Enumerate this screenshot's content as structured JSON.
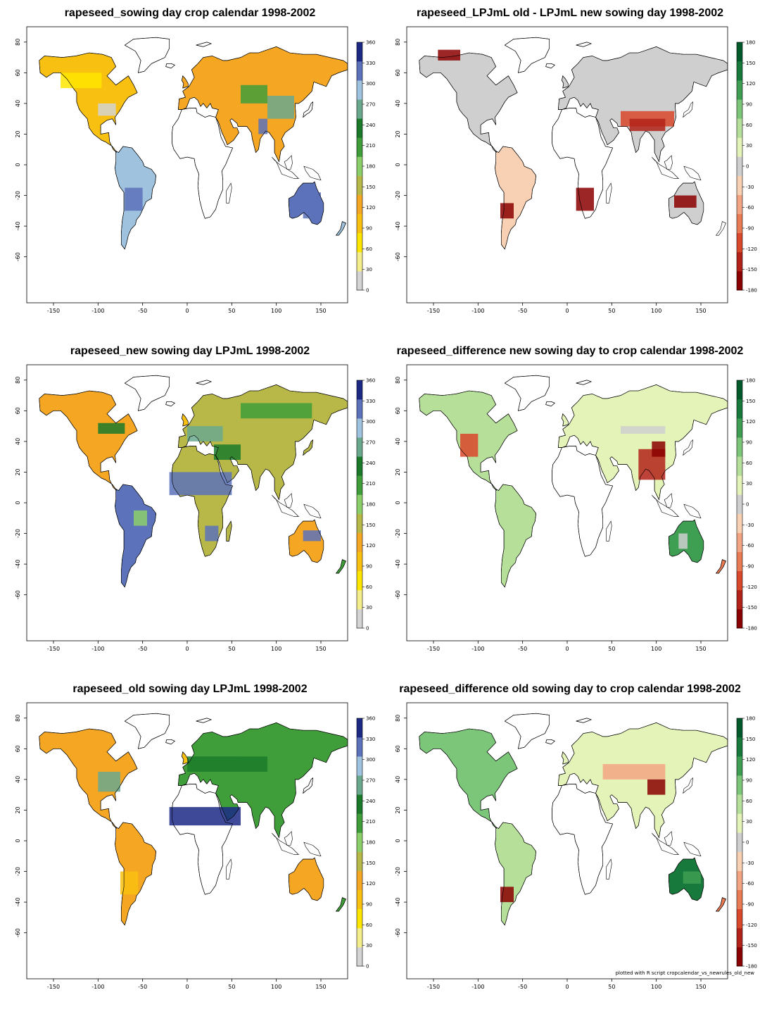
{
  "x_ticks": [
    "-150",
    "-100",
    "-50",
    "0",
    "50",
    "100",
    "150"
  ],
  "y_ticks": [
    "80",
    "60",
    "40",
    "20",
    "0",
    "-20",
    "-40",
    "-60"
  ],
  "scales": {
    "sowing": {
      "labels": [
        "0",
        "30",
        "60",
        "90",
        "120",
        "150",
        "180",
        "210",
        "240",
        "270",
        "300",
        "330",
        "360"
      ],
      "colors": [
        "#d4d4d4",
        "#f3ee8a",
        "#ffe600",
        "#f8c010",
        "#f5a623",
        "#b8b848",
        "#8ccf6a",
        "#3f9e3a",
        "#1b7a2a",
        "#6aa88e",
        "#9fc3de",
        "#5c72bb",
        "#1c2a86"
      ]
    },
    "difference": {
      "labels": [
        "-180",
        "-150",
        "-120",
        "-90",
        "-60",
        "-30",
        "0",
        "30",
        "60",
        "90",
        "120",
        "150",
        "180"
      ],
      "colors": [
        "#8b0000",
        "#b22218",
        "#d9482b",
        "#ea7a54",
        "#f3a583",
        "#f8d0b3",
        "#cfcfcf",
        "#e4f3b8",
        "#b6df9a",
        "#7cc67a",
        "#3e9e52",
        "#17793b",
        "#005a2b"
      ]
    }
  },
  "panels": [
    {
      "title": "rapeseed_sowing day crop calendar 1998-2002",
      "scale": "sowing"
    },
    {
      "title": "rapeseed_LPJmL old - LPJmL new sowing day 1998-2002",
      "scale": "difference"
    },
    {
      "title": "rapeseed_new sowing day LPJmL 1998-2002",
      "scale": "sowing"
    },
    {
      "title": "rapeseed_difference new sowing day to crop calendar 1998-2002",
      "scale": "difference"
    },
    {
      "title": "rapeseed_old sowing day LPJmL 1998-2002",
      "scale": "sowing"
    },
    {
      "title": "rapeseed_difference old sowing day to crop calendar 1998-2002",
      "scale": "difference"
    }
  ],
  "footnote": "plotted with R script cropcalendar_vs_newrules_old_new"
}
